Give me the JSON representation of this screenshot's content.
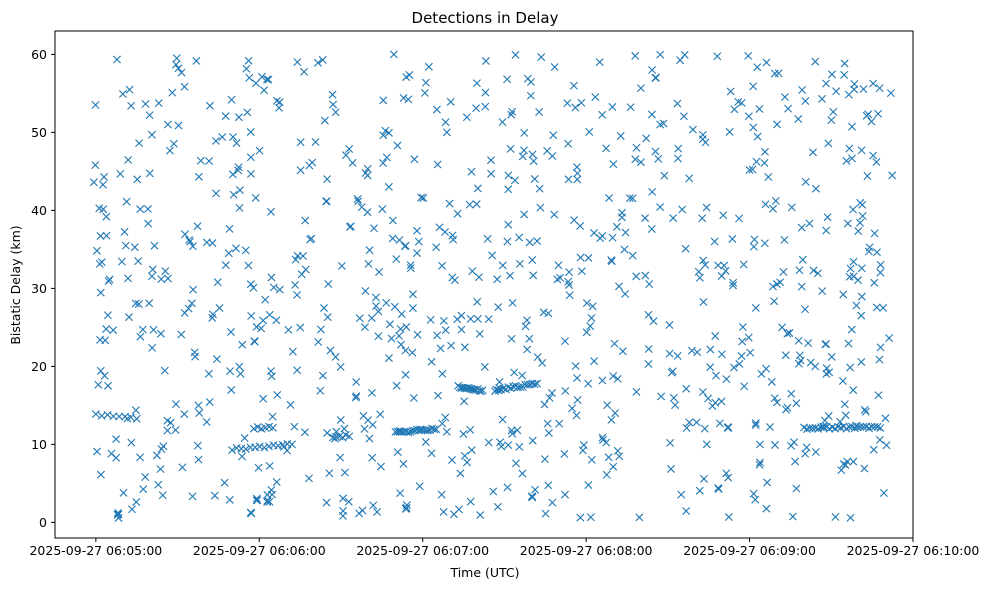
{
  "chart_data": {
    "type": "scatter",
    "title": "Detections in Delay",
    "xlabel": "Time (UTC)",
    "ylabel": "Bistatic Delay (km)",
    "marker": "x",
    "color": "#1f77b4",
    "grid": false,
    "legend": null,
    "x_ticks": [
      "2025-09-27 06:05:00",
      "2025-09-27 06:06:00",
      "2025-09-27 06:07:00",
      "2025-09-27 06:08:00",
      "2025-09-27 06:09:00",
      "2025-09-27 06:10:00"
    ],
    "y_ticks": [
      "0",
      "10",
      "20",
      "30",
      "40",
      "50",
      "60"
    ],
    "xlim": [
      "2025-09-27 06:04:45",
      "2025-09-27 06:10:00"
    ],
    "ylim": [
      -2,
      63
    ],
    "time_range": [
      "2025-09-27 06:04:59",
      "2025-09-27 06:09:53"
    ],
    "random_detections": {
      "approx_count": 900,
      "delay_range_km": [
        0.5,
        60
      ]
    },
    "tracks": [
      {
        "x_start": "2025-09-27 06:05:00",
        "x_end": "2025-09-27 06:05:15",
        "delay_start_km": 13.9,
        "delay_end_km": 13.3,
        "points": 8
      },
      {
        "x_start": "2025-09-27 06:05:50",
        "x_end": "2025-09-27 06:06:12",
        "delay_start_km": 9.4,
        "delay_end_km": 10.0,
        "points": 14
      },
      {
        "x_start": "2025-09-27 06:05:58",
        "x_end": "2025-09-27 06:06:05",
        "delay_start_km": 12.1,
        "delay_end_km": 12.2,
        "points": 6
      },
      {
        "x_start": "2025-09-27 06:06:27",
        "x_end": "2025-09-27 06:06:33",
        "delay_start_km": 10.9,
        "delay_end_km": 11.1,
        "points": 6
      },
      {
        "x_start": "2025-09-27 06:06:50",
        "x_end": "2025-09-27 06:07:05",
        "delay_start_km": 11.5,
        "delay_end_km": 12.0,
        "points": 20
      },
      {
        "x_start": "2025-09-27 06:07:13",
        "x_end": "2025-09-27 06:07:22",
        "delay_start_km": 17.4,
        "delay_end_km": 16.9,
        "points": 16
      },
      {
        "x_start": "2025-09-27 06:07:27",
        "x_end": "2025-09-27 06:07:42",
        "delay_start_km": 17.0,
        "delay_end_km": 17.8,
        "points": 18
      },
      {
        "x_start": "2025-09-27 06:09:20",
        "x_end": "2025-09-27 06:09:48",
        "delay_start_km": 12.1,
        "delay_end_km": 12.2,
        "points": 28
      }
    ],
    "clusters": [
      {
        "x": "2025-09-27 06:05:08",
        "delay_km": 1.1
      },
      {
        "x": "2025-09-27 06:05:57",
        "delay_km": 1.2
      },
      {
        "x": "2025-09-27 06:05:59",
        "delay_km": 3.0
      },
      {
        "x": "2025-09-27 06:06:54",
        "delay_km": 1.7
      },
      {
        "x": "2025-09-27 06:07:40",
        "delay_km": 3.4
      },
      {
        "x": "2025-09-27 06:08:52",
        "delay_km": 12.1
      }
    ]
  }
}
